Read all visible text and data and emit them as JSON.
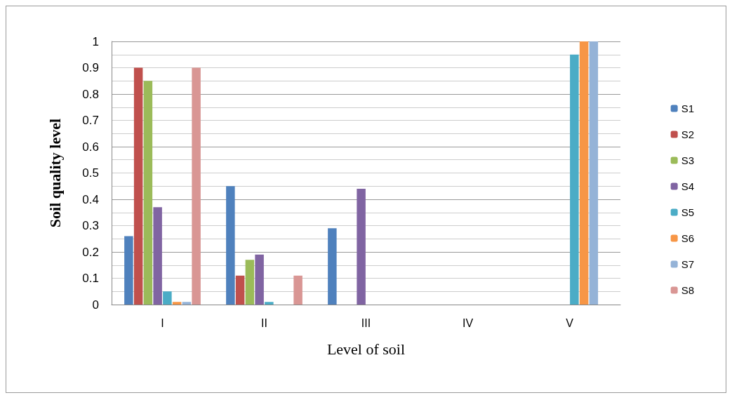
{
  "chart_data": {
    "type": "bar",
    "xlabel": "Level of soil",
    "ylabel": "Soil quality level",
    "categories": [
      "I",
      "II",
      "III",
      "IV",
      "V"
    ],
    "series": [
      {
        "name": "S1",
        "color": "#4f81bd",
        "values": [
          0.26,
          0.45,
          0.29,
          0,
          0
        ]
      },
      {
        "name": "S2",
        "color": "#c0504d",
        "values": [
          0.9,
          0.11,
          0,
          0,
          0
        ]
      },
      {
        "name": "S3",
        "color": "#9bbb59",
        "values": [
          0.85,
          0.17,
          0,
          0,
          0
        ]
      },
      {
        "name": "S4",
        "color": "#8064a2",
        "values": [
          0.37,
          0.19,
          0.44,
          0,
          0
        ]
      },
      {
        "name": "S5",
        "color": "#4bacc6",
        "values": [
          0.05,
          0.01,
          0,
          0,
          0.95
        ]
      },
      {
        "name": "S6",
        "color": "#f79646",
        "values": [
          0.01,
          0,
          0,
          0,
          1
        ]
      },
      {
        "name": "S7",
        "color": "#95b3d7",
        "values": [
          0.01,
          0,
          0,
          0,
          1
        ]
      },
      {
        "name": "S8",
        "color": "#d99694",
        "values": [
          0.9,
          0.11,
          0,
          0,
          0
        ]
      }
    ],
    "ylim": [
      0,
      1
    ],
    "yticks": [
      0,
      0.1,
      0.2,
      0.3,
      0.4,
      0.5,
      0.6,
      0.7,
      0.8,
      0.9,
      1
    ],
    "grid": "y",
    "legend": "right"
  }
}
